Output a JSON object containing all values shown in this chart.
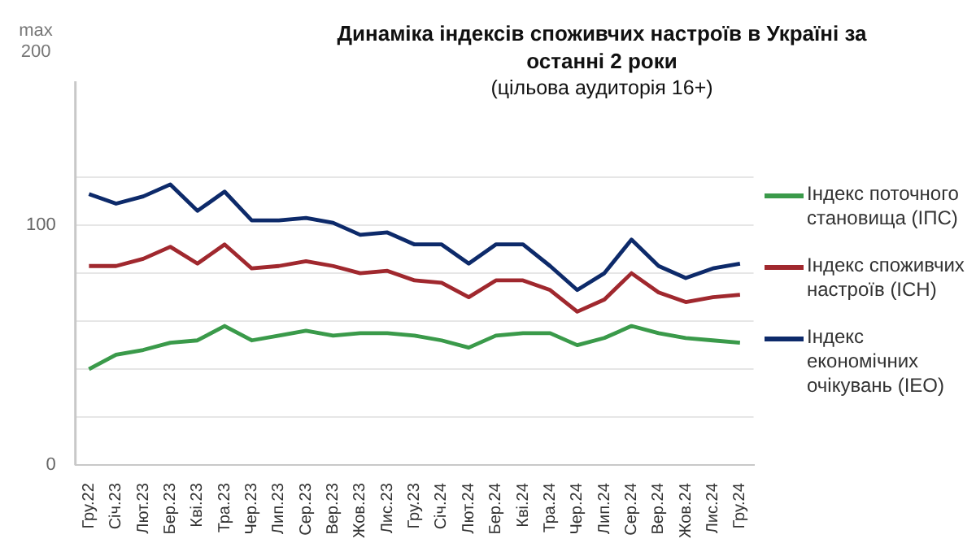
{
  "chart_data": {
    "type": "line",
    "title": "Динаміка індексів споживчих настроїв в Україні за останні 2 роки",
    "subtitle": "(цільова аудиторія 16+)",
    "annotations": [
      "max 200"
    ],
    "categories": [
      "Гру.22",
      "Січ.23",
      "Лют.23",
      "Бер.23",
      "Кві.23",
      "Тра.23",
      "Чер.23",
      "Лип.23",
      "Сер.23",
      "Вер.23",
      "Жов.23",
      "Лис.23",
      "Гру.23",
      "Січ.24",
      "Лют.24",
      "Бер.24",
      "Кві.24",
      "Тра.24",
      "Чер.24",
      "Лип.24",
      "Сер.24",
      "Вер.24",
      "Жов.24",
      "Лис.24",
      "Гру.24"
    ],
    "series": [
      {
        "name": "Індекс поточного становища (ІПС)",
        "color": "#3a9a4a",
        "values": [
          40,
          46,
          48,
          51,
          52,
          58,
          52,
          54,
          56,
          54,
          55,
          55,
          54,
          52,
          49,
          54,
          55,
          55,
          50,
          53,
          58,
          55,
          53,
          52,
          51
        ]
      },
      {
        "name": "Індекс споживчих настроїв (ІСН)",
        "color": "#a0282e",
        "values": [
          83,
          83,
          86,
          91,
          84,
          92,
          82,
          83,
          85,
          83,
          80,
          81,
          77,
          76,
          70,
          77,
          77,
          73,
          64,
          69,
          80,
          72,
          68,
          70,
          71
        ]
      },
      {
        "name": "Індекс економічних очікувань (ІЕО)",
        "color": "#0d2a6a",
        "values": [
          113,
          109,
          112,
          117,
          106,
          114,
          102,
          102,
          103,
          101,
          96,
          97,
          92,
          92,
          84,
          92,
          92,
          83,
          73,
          80,
          94,
          83,
          78,
          82,
          84
        ]
      }
    ],
    "ylim": [
      0,
      160
    ],
    "yticks": [
      0,
      {
        "value": 20,
        "label": null
      },
      {
        "value": 40,
        "label": null
      },
      {
        "value": 60,
        "label": null
      },
      {
        "value": 80,
        "label": null
      },
      100,
      {
        "value": 120,
        "label": null
      }
    ],
    "grid": "y",
    "legend": "right",
    "marker": "none",
    "line_style": "solid"
  }
}
